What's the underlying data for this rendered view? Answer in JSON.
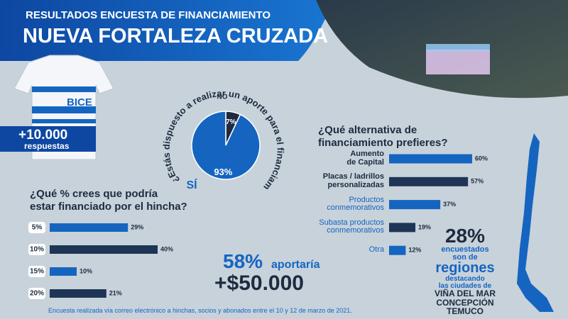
{
  "header": {
    "subtitle": "RESULTADOS ENCUESTA DE FINANCIAMIENTO",
    "title": "NUEVA FORTALEZA CRUZADA"
  },
  "jersey_text": "BICE",
  "responses": {
    "count": "+10.000",
    "label": "respuestas"
  },
  "chart_data": [
    {
      "type": "pie",
      "title": "¿Estás dispuesto a realizar un aporte para el financiamiento?",
      "categories": [
        "NO",
        "SÍ"
      ],
      "values": [
        7,
        93
      ],
      "value_labels": [
        "7%",
        "93%"
      ],
      "colors": [
        "#1e2b3f",
        "#1565c0"
      ]
    },
    {
      "type": "bar",
      "title": "¿Qué % crees que podría\nestar financiado por el hincha?",
      "categories": [
        "5%",
        "10%",
        "15%",
        "20%"
      ],
      "values": [
        29,
        40,
        10,
        21
      ],
      "value_labels": [
        "29%",
        "40%",
        "10%",
        "21%"
      ],
      "colors": [
        "#1565c0",
        "#1e3556",
        "#1565c0",
        "#1e3556"
      ]
    },
    {
      "type": "bar",
      "title": "¿Qué alternativa de\nfinanciamiento prefieres?",
      "categories": [
        "Aumento\nde Capital",
        "Placas / ladrillos\npersonalizadas",
        "Productos\nconmemorativos",
        "Subasta productos\nconmemorativos",
        "Otra"
      ],
      "values": [
        60,
        57,
        37,
        19,
        12
      ],
      "value_labels": [
        "60%",
        "57%",
        "37%",
        "19%",
        "12%"
      ],
      "colors": [
        "#1565c0",
        "#1e3556",
        "#1565c0",
        "#1e3556",
        "#1565c0"
      ]
    }
  ],
  "contribution": {
    "percent": "58%",
    "label": "aportaría",
    "amount": "+$50.000"
  },
  "regions": {
    "percent": "28%",
    "line1": "encuestados\nson de",
    "highlight": "regiones",
    "line2": "destacando\nlas ciudades de",
    "cities": [
      "VIÑA DEL MAR",
      "CONCEPCIÓN",
      "TEMUCO"
    ]
  },
  "footnote": "Encuesta realizada vía correo electrónico a hinchas, socios y abonados entre el 10 y 12 de marzo de 2021."
}
